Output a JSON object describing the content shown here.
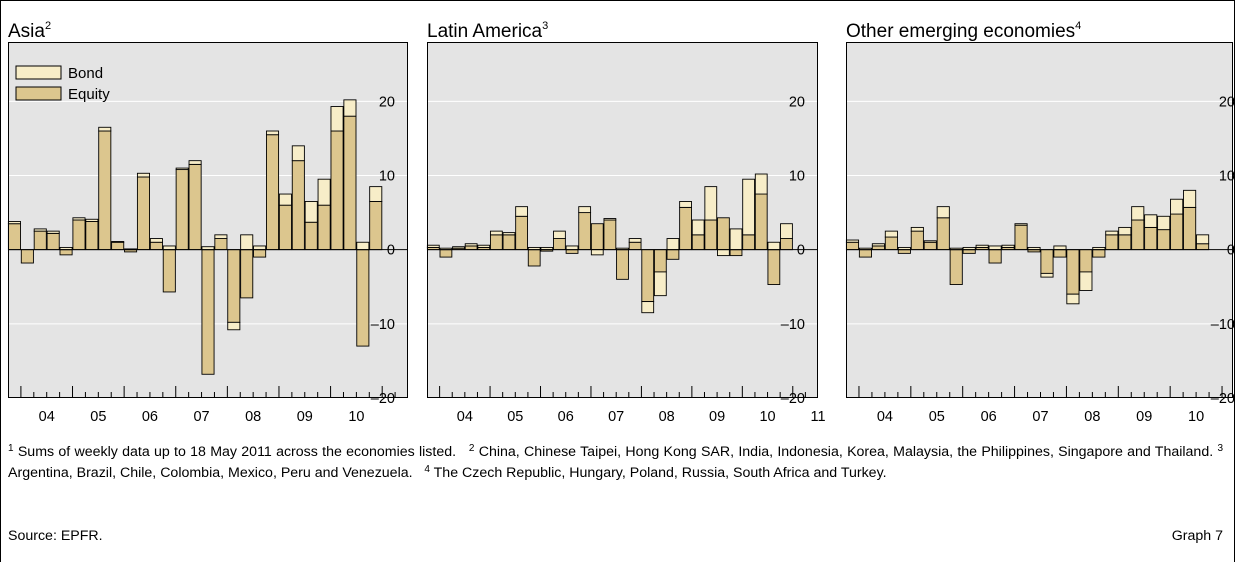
{
  "colors": {
    "bond": "#f7edc8",
    "equity": "#dcc68e",
    "panel_bg": "#e4e4e4",
    "grid": "#ffffff"
  },
  "legend": {
    "bond": "Bond",
    "equity": "Equity"
  },
  "chart_data": [
    {
      "type": "bar",
      "title": "Asia",
      "title_sup": "2",
      "ylim": [
        -20,
        28
      ],
      "yticks": [
        20,
        10,
        0,
        -10,
        -20
      ],
      "ytick_labels": [
        "20",
        "10",
        "0",
        "–10",
        "–20"
      ],
      "xrange": [
        2003.75,
        2011.5
      ],
      "xtick_labels": [
        "04",
        "05",
        "06",
        "07",
        "08",
        "09",
        "10"
      ],
      "stacked_series": [
        "equity",
        "bond"
      ],
      "bars": [
        {
          "x": 2003.875,
          "equity": 3.5,
          "bond": 0.3
        },
        {
          "x": 2004.125,
          "equity": -1.8,
          "bond": 0
        },
        {
          "x": 2004.375,
          "equity": 2.5,
          "bond": 0.3
        },
        {
          "x": 2004.625,
          "equity": 2.2,
          "bond": 0.3
        },
        {
          "x": 2004.875,
          "equity": -0.7,
          "bond": 0.3
        },
        {
          "x": 2005.125,
          "equity": 4.0,
          "bond": 0.3
        },
        {
          "x": 2005.375,
          "equity": 3.8,
          "bond": 0.3
        },
        {
          "x": 2005.625,
          "equity": 16.0,
          "bond": 0.5
        },
        {
          "x": 2005.875,
          "equity": 1.0,
          "bond": 0.1
        },
        {
          "x": 2006.125,
          "equity": -0.3,
          "bond": 0.1
        },
        {
          "x": 2006.375,
          "equity": 9.8,
          "bond": 0.5
        },
        {
          "x": 2006.625,
          "equity": 1.0,
          "bond": 0.5
        },
        {
          "x": 2006.875,
          "equity": -5.7,
          "bond": 0.5
        },
        {
          "x": 2007.125,
          "equity": 10.8,
          "bond": 0.2
        },
        {
          "x": 2007.375,
          "equity": 11.5,
          "bond": 0.5
        },
        {
          "x": 2007.625,
          "equity": -16.8,
          "bond": 0.4
        },
        {
          "x": 2007.875,
          "equity": 1.5,
          "bond": 0.5
        },
        {
          "x": 2008.125,
          "equity": -9.8,
          "bond": -1.0
        },
        {
          "x": 2008.375,
          "equity": -6.5,
          "bond": 2.0
        },
        {
          "x": 2008.625,
          "equity": -1.0,
          "bond": 0.5
        },
        {
          "x": 2008.875,
          "equity": 15.5,
          "bond": 0.5
        },
        {
          "x": 2009.125,
          "equity": 6.0,
          "bond": 1.5
        },
        {
          "x": 2009.375,
          "equity": 12.0,
          "bond": 2.0
        },
        {
          "x": 2009.625,
          "equity": 3.7,
          "bond": 2.8
        },
        {
          "x": 2009.875,
          "equity": 6.0,
          "bond": 3.5
        },
        {
          "x": 2010.125,
          "equity": 16.0,
          "bond": 3.3
        },
        {
          "x": 2010.375,
          "equity": 18.0,
          "bond": 2.2
        },
        {
          "x": 2010.625,
          "equity": -13.0,
          "bond": 1.0
        },
        {
          "x": 2010.875,
          "equity": 6.5,
          "bond": 2.0
        }
      ]
    },
    {
      "type": "bar",
      "title": "Latin America",
      "title_sup": "3",
      "ylim": [
        -20,
        28
      ],
      "yticks": [
        20,
        10,
        0,
        -10,
        -20
      ],
      "ytick_labels": [
        "20",
        "10",
        "0",
        "–10",
        "–20"
      ],
      "xrange": [
        2003.75,
        2011.5
      ],
      "xtick_labels": [
        "04",
        "05",
        "06",
        "07",
        "08",
        "09",
        "10",
        "11"
      ],
      "stacked_series": [
        "equity",
        "bond"
      ],
      "bars": [
        {
          "x": 2003.875,
          "equity": 0.3,
          "bond": 0.3
        },
        {
          "x": 2004.125,
          "equity": -1.0,
          "bond": 0.2
        },
        {
          "x": 2004.375,
          "equity": 0.2,
          "bond": 0.2
        },
        {
          "x": 2004.625,
          "equity": 0.5,
          "bond": 0.3
        },
        {
          "x": 2004.875,
          "equity": 0.3,
          "bond": 0.3
        },
        {
          "x": 2005.125,
          "equity": 2.0,
          "bond": 0.5
        },
        {
          "x": 2005.375,
          "equity": 2.0,
          "bond": 0.3
        },
        {
          "x": 2005.625,
          "equity": 4.5,
          "bond": 1.3
        },
        {
          "x": 2005.875,
          "equity": -2.2,
          "bond": 0.3
        },
        {
          "x": 2006.125,
          "equity": -0.2,
          "bond": 0.3
        },
        {
          "x": 2006.375,
          "equity": 1.5,
          "bond": 1.0
        },
        {
          "x": 2006.625,
          "equity": -0.5,
          "bond": 0.5
        },
        {
          "x": 2006.875,
          "equity": 5.0,
          "bond": 0.8
        },
        {
          "x": 2007.125,
          "equity": 3.5,
          "bond": -0.7
        },
        {
          "x": 2007.375,
          "equity": 4.0,
          "bond": 0.2
        },
        {
          "x": 2007.625,
          "equity": -4.0,
          "bond": 0.2
        },
        {
          "x": 2007.875,
          "equity": 1.0,
          "bond": 0.5
        },
        {
          "x": 2008.125,
          "equity": -7.0,
          "bond": -1.5
        },
        {
          "x": 2008.375,
          "equity": -3.0,
          "bond": -3.2
        },
        {
          "x": 2008.625,
          "equity": -1.3,
          "bond": 1.5
        },
        {
          "x": 2008.875,
          "equity": 5.7,
          "bond": 0.8
        },
        {
          "x": 2009.125,
          "equity": 2.0,
          "bond": 2.0
        },
        {
          "x": 2009.375,
          "equity": 4.0,
          "bond": 4.5
        },
        {
          "x": 2009.625,
          "equity": 4.3,
          "bond": -0.8
        },
        {
          "x": 2009.875,
          "equity": -0.8,
          "bond": 2.8
        },
        {
          "x": 2010.125,
          "equity": 2.0,
          "bond": 7.5
        },
        {
          "x": 2010.375,
          "equity": 7.5,
          "bond": 2.7
        },
        {
          "x": 2010.625,
          "equity": -4.7,
          "bond": 1.0
        },
        {
          "x": 2010.875,
          "equity": 1.5,
          "bond": 2.0
        }
      ]
    },
    {
      "type": "bar",
      "title": "Other emerging economies",
      "title_sup": "4",
      "ylim": [
        -20,
        28
      ],
      "yticks": [
        20,
        10,
        0,
        -10,
        -20
      ],
      "ytick_labels": [
        "20",
        "10",
        "0",
        "–10",
        "–20"
      ],
      "xrange": [
        2003.75,
        2011.25
      ],
      "xtick_labels": [
        "04",
        "05",
        "06",
        "07",
        "08",
        "09",
        "10"
      ],
      "stacked_series": [
        "equity",
        "bond"
      ],
      "bars": [
        {
          "x": 2003.875,
          "equity": 1.0,
          "bond": 0.3
        },
        {
          "x": 2004.125,
          "equity": -1.0,
          "bond": 0.2
        },
        {
          "x": 2004.375,
          "equity": 0.5,
          "bond": 0.3
        },
        {
          "x": 2004.625,
          "equity": 1.7,
          "bond": 0.8
        },
        {
          "x": 2004.875,
          "equity": -0.5,
          "bond": 0.3
        },
        {
          "x": 2005.125,
          "equity": 2.5,
          "bond": 0.5
        },
        {
          "x": 2005.375,
          "equity": 1.0,
          "bond": 0.2
        },
        {
          "x": 2005.625,
          "equity": 4.3,
          "bond": 1.5
        },
        {
          "x": 2005.875,
          "equity": -4.7,
          "bond": 0.2
        },
        {
          "x": 2006.125,
          "equity": -0.5,
          "bond": 0.3
        },
        {
          "x": 2006.375,
          "equity": 0.3,
          "bond": 0.3
        },
        {
          "x": 2006.625,
          "equity": -1.8,
          "bond": 0.5
        },
        {
          "x": 2006.875,
          "equity": 0.3,
          "bond": 0.3
        },
        {
          "x": 2007.125,
          "equity": 3.3,
          "bond": 0.2
        },
        {
          "x": 2007.375,
          "equity": -0.3,
          "bond": 0.3
        },
        {
          "x": 2007.625,
          "equity": -3.2,
          "bond": -0.5
        },
        {
          "x": 2007.875,
          "equity": -1.0,
          "bond": 0.5
        },
        {
          "x": 2008.125,
          "equity": -6.0,
          "bond": -1.3
        },
        {
          "x": 2008.375,
          "equity": -3.0,
          "bond": -2.5
        },
        {
          "x": 2008.625,
          "equity": -1.0,
          "bond": 0.3
        },
        {
          "x": 2008.875,
          "equity": 2.0,
          "bond": 0.5
        },
        {
          "x": 2009.125,
          "equity": 2.0,
          "bond": 1.0
        },
        {
          "x": 2009.375,
          "equity": 4.0,
          "bond": 1.8
        },
        {
          "x": 2009.625,
          "equity": 3.0,
          "bond": 1.7
        },
        {
          "x": 2009.875,
          "equity": 2.7,
          "bond": 1.8
        },
        {
          "x": 2010.125,
          "equity": 4.8,
          "bond": 2.0
        },
        {
          "x": 2010.375,
          "equity": 5.7,
          "bond": 2.3
        },
        {
          "x": 2010.625,
          "equity": 0.8,
          "bond": 1.2
        }
      ]
    }
  ],
  "footnotes": {
    "f1_mark": "1",
    "f1": "Sums of weekly data up to 18 May 2011 across the economies listed.",
    "f2_mark": "2",
    "f2": "China, Chinese Taipei, Hong Kong SAR, India, Indonesia, Korea, Malaysia, the Philippines, Singapore and Thailand.",
    "f3_mark": "3",
    "f3": "Argentina, Brazil, Chile, Colombia, Mexico, Peru and Venezuela.",
    "f4_mark": "4",
    "f4": "The Czech Republic, Hungary, Poland, Russia, South Africa and Turkey."
  },
  "source": "Source: EPFR.",
  "graph_label": "Graph 7"
}
